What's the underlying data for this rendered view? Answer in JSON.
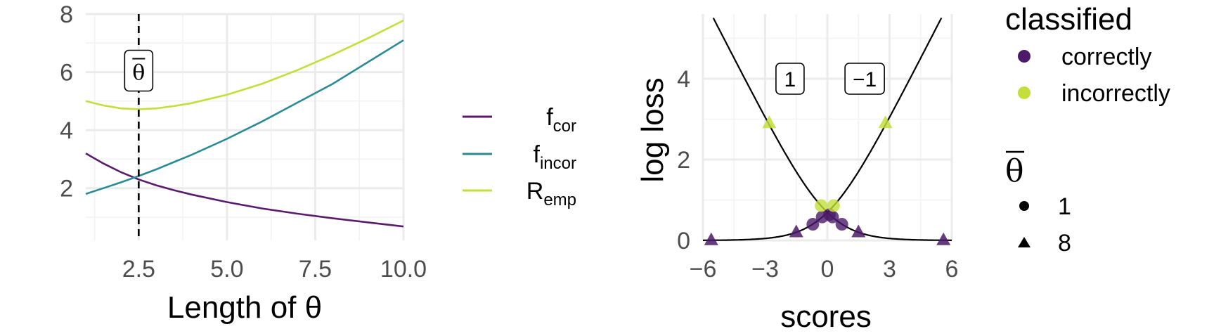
{
  "chart_data": [
    {
      "type": "line",
      "xlabel": "Length of  θ",
      "ylabel": "",
      "xlim": [
        1,
        10
      ],
      "ylim": [
        0.2,
        8
      ],
      "xticks": [
        "2.5",
        "5.0",
        "7.5",
        "10.0"
      ],
      "yticks": [
        "2",
        "4",
        "6",
        "8"
      ],
      "grid": true,
      "series": [
        {
          "key": "fcor",
          "name_main": "f",
          "name_sub": "cor",
          "color": "#5a1a6e",
          "x": [
            1,
            1.5,
            2,
            2.5,
            3,
            3.5,
            4,
            5,
            6,
            7,
            8,
            9,
            10
          ],
          "y": [
            3.2,
            2.85,
            2.55,
            2.3,
            2.1,
            1.93,
            1.78,
            1.52,
            1.3,
            1.12,
            0.96,
            0.82,
            0.68
          ]
        },
        {
          "key": "fincor",
          "name_main": "f",
          "name_sub": "incor",
          "color": "#2a8b96",
          "x": [
            1,
            1.5,
            2,
            2.5,
            3,
            3.5,
            4,
            5,
            6,
            7,
            8,
            9,
            10
          ],
          "y": [
            1.8,
            2.0,
            2.2,
            2.42,
            2.65,
            2.9,
            3.15,
            3.7,
            4.3,
            4.95,
            5.6,
            6.35,
            7.1
          ]
        },
        {
          "key": "remp",
          "name_main": "R",
          "name_sub": "emp",
          "color": "#c2df3a",
          "x": [
            1,
            1.5,
            2,
            2.5,
            3,
            3.5,
            4,
            5,
            6,
            7,
            8,
            9,
            10
          ],
          "y": [
            5.0,
            4.85,
            4.75,
            4.72,
            4.75,
            4.83,
            4.93,
            5.22,
            5.6,
            6.07,
            6.6,
            7.17,
            7.78
          ]
        }
      ],
      "vline": {
        "x": 2.5,
        "style": "dashed"
      },
      "annotation": {
        "text": "θ",
        "overline": true,
        "x": 2.5,
        "y": 6.05
      }
    },
    {
      "type": "scatter",
      "xlabel": "scores",
      "ylabel": "log loss",
      "xlim": [
        -6,
        6
      ],
      "ylim": [
        0,
        5.6
      ],
      "xticks": [
        "−6",
        "−3",
        "0",
        "3",
        "6"
      ],
      "xtick_values": [
        -6,
        -3,
        0,
        3,
        6
      ],
      "yticks": [
        "0",
        "2",
        "4"
      ],
      "ytick_values": [
        0,
        2,
        4
      ],
      "grid": true,
      "curves": [
        "log(1+exp(-s))",
        "log(1+exp(s))"
      ],
      "annotations": [
        {
          "text": "1",
          "x": -1.8,
          "y": 4.0
        },
        {
          "text": "−1",
          "x": 1.8,
          "y": 4.0
        }
      ],
      "points": [
        {
          "x": -5.6,
          "y": 0.004,
          "classified": "correctly",
          "theta": "8"
        },
        {
          "x": -1.5,
          "y": 0.2,
          "classified": "correctly",
          "theta": "8"
        },
        {
          "x": -0.7,
          "y": 0.4,
          "classified": "correctly",
          "theta": "1"
        },
        {
          "x": -0.25,
          "y": 0.58,
          "classified": "correctly",
          "theta": "1"
        },
        {
          "x": 0.1,
          "y": 0.64,
          "classified": "correctly",
          "theta": "1"
        },
        {
          "x": 0.25,
          "y": 0.58,
          "classified": "correctly",
          "theta": "1"
        },
        {
          "x": 0.7,
          "y": 0.4,
          "classified": "correctly",
          "theta": "1"
        },
        {
          "x": 1.5,
          "y": 0.2,
          "classified": "correctly",
          "theta": "8"
        },
        {
          "x": 5.6,
          "y": 0.004,
          "classified": "correctly",
          "theta": "8"
        },
        {
          "x": -2.8,
          "y": 2.9,
          "classified": "incorrectly",
          "theta": "8"
        },
        {
          "x": 2.8,
          "y": 2.9,
          "classified": "incorrectly",
          "theta": "8"
        },
        {
          "x": -0.3,
          "y": 0.86,
          "classified": "incorrectly",
          "theta": "1"
        },
        {
          "x": 0.3,
          "y": 0.86,
          "classified": "incorrectly",
          "theta": "1"
        }
      ]
    }
  ],
  "legend_right": {
    "classified_title": "classified",
    "classified_items": [
      {
        "key": "correctly",
        "label": "correctly",
        "color": "#4b1a69"
      },
      {
        "key": "incorrectly",
        "label": "incorrectly",
        "color": "#c2df3a"
      }
    ],
    "theta_title": "θ",
    "theta_items": [
      {
        "key": "1",
        "label": "1",
        "shape": "circle"
      },
      {
        "key": "8",
        "label": "8",
        "shape": "triangle"
      }
    ]
  },
  "colors": {
    "correctly_point": "#4b1a69",
    "incorrectly_point": "#c2df3a"
  }
}
